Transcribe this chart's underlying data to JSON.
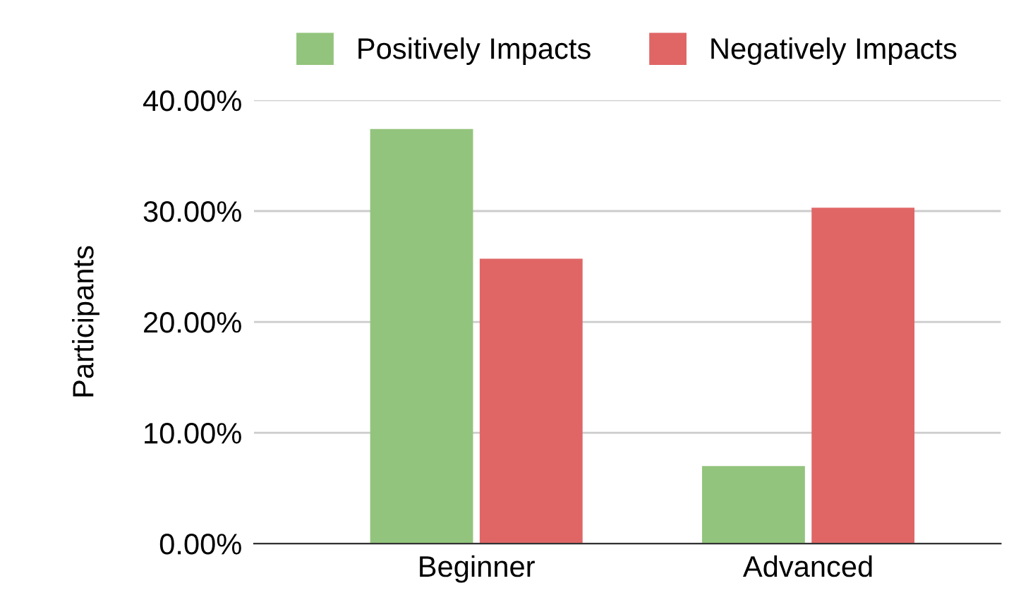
{
  "chart_data": {
    "type": "bar",
    "ylabel": "Participants",
    "categories": [
      "Beginner",
      "Advanced"
    ],
    "series": [
      {
        "name": "Positively Impacts",
        "color": "#93c47d",
        "values": [
          37.4,
          7.0
        ]
      },
      {
        "name": "Negatively Impacts",
        "color": "#e06666",
        "values": [
          25.7,
          30.3
        ]
      }
    ],
    "ylim": [
      0,
      40
    ],
    "yticks": [
      {
        "value": 0,
        "label": "0.00%"
      },
      {
        "value": 10,
        "label": "10.00%"
      },
      {
        "value": 20,
        "label": "20.00%"
      },
      {
        "value": 30,
        "label": "30.00%"
      },
      {
        "value": 40,
        "label": "40.00%"
      }
    ],
    "grid": "y",
    "legend": "top"
  }
}
